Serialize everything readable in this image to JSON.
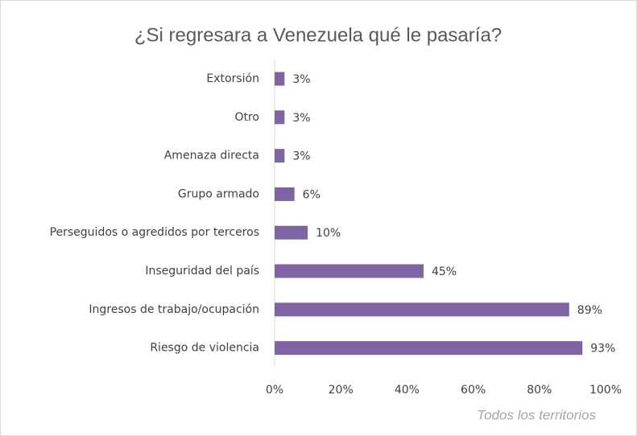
{
  "chart_data": {
    "type": "bar",
    "orientation": "horizontal",
    "title": "¿Si regresara a Venezuela qué le pasaría?",
    "annotation": "Todos los territorios",
    "categories": [
      "Extorsión",
      "Otro",
      "Amenaza directa",
      "Grupo armado",
      "Perseguidos o agredidos por terceros",
      "Inseguridad del país",
      "Ingresos de trabajo/ocupación",
      "Riesgo de violencia"
    ],
    "values": [
      3,
      3,
      3,
      6,
      10,
      45,
      89,
      93
    ],
    "value_labels": [
      "3%",
      "3%",
      "3%",
      "6%",
      "10%",
      "45%",
      "89%",
      "93%"
    ],
    "color": "#8064a2",
    "xlim": [
      0,
      100
    ],
    "xticks": [
      {
        "value": 0,
        "label": "0%"
      },
      {
        "value": 20,
        "label": "20%"
      },
      {
        "value": 40,
        "label": "40%"
      },
      {
        "value": 60,
        "label": "60%"
      },
      {
        "value": 80,
        "label": "80%"
      },
      {
        "value": 100,
        "label": "100%"
      }
    ],
    "grid": false
  }
}
